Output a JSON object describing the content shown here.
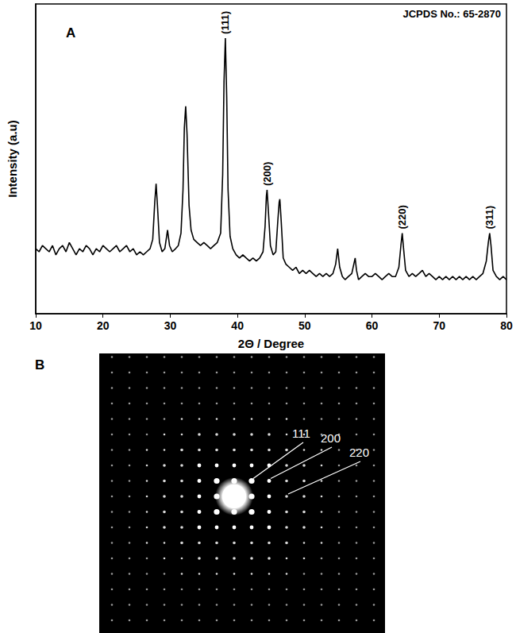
{
  "chart_data": {
    "type": "line",
    "title": "A",
    "subtitle": "JCPDS No.: 65-2870",
    "x_label": "2Θ / Degree",
    "y_label": "Intensity (a.u)",
    "color": "#000000",
    "grid": false,
    "tick_labels": "x",
    "xlim": [
      10,
      80
    ],
    "xticks": [
      10,
      20,
      30,
      40,
      50,
      60,
      70,
      80
    ],
    "ylim": [
      0,
      100
    ],
    "annotations": [
      {
        "text": "(111)",
        "x": 38.2
      },
      {
        "text": "(200)",
        "x": 44.4
      },
      {
        "text": "(220)",
        "x": 64.5
      },
      {
        "text": "(311)",
        "x": 77.5
      }
    ],
    "x": [
      10,
      10.5,
      11,
      11.5,
      12,
      12.5,
      13,
      13.5,
      14,
      14.5,
      15,
      15.5,
      16,
      16.5,
      17,
      17.5,
      18,
      18.5,
      19,
      19.5,
      20,
      20.5,
      21,
      21.5,
      22,
      22.5,
      23,
      23.5,
      24,
      24.5,
      25,
      25.5,
      26,
      26.5,
      27,
      27.4,
      27.7,
      27.9,
      28.1,
      28.4,
      28.8,
      29.2,
      29.6,
      29.9,
      30.3,
      30.8,
      31.2,
      31.6,
      31.9,
      32.1,
      32.3,
      32.5,
      32.8,
      33.1,
      33.5,
      34,
      34.5,
      35,
      35.5,
      36,
      36.5,
      37,
      37.5,
      37.8,
      38,
      38.2,
      38.4,
      38.6,
      38.9,
      39.3,
      39.8,
      40.3,
      40.8,
      41.3,
      41.8,
      42.3,
      42.8,
      43.3,
      43.8,
      44.1,
      44.3,
      44.4,
      44.6,
      44.9,
      45.3,
      45.7,
      46,
      46.2,
      46.3,
      46.5,
      46.8,
      47.2,
      47.7,
      48.2,
      48.7,
      49.2,
      49.7,
      50.2,
      50.7,
      51.2,
      51.7,
      52.2,
      52.7,
      53.2,
      53.7,
      54.2,
      54.6,
      54.9,
      55.2,
      55.6,
      56,
      56.5,
      57,
      57.3,
      57.5,
      57.7,
      58,
      58.5,
      59,
      59.5,
      60,
      60.5,
      61,
      61.5,
      62,
      62.5,
      63,
      63.5,
      64,
      64.3,
      64.5,
      64.7,
      65,
      65.5,
      66,
      66.5,
      67,
      67.5,
      68,
      68.5,
      69,
      69.5,
      70,
      70.5,
      71,
      71.5,
      72,
      72.5,
      73,
      73.5,
      74,
      74.5,
      75,
      75.5,
      76,
      76.5,
      77,
      77.3,
      77.5,
      77.7,
      78,
      78.5,
      79,
      79.5,
      80
    ],
    "values": [
      21,
      20,
      22,
      21,
      20,
      22,
      19,
      21,
      22,
      20,
      23,
      21,
      19,
      21,
      20,
      22,
      21,
      19,
      21,
      20,
      22,
      21,
      20,
      21,
      22,
      20,
      21,
      22,
      20,
      21,
      19,
      20,
      19,
      20,
      21,
      24,
      36,
      42,
      35,
      23,
      20,
      21,
      27,
      22,
      20,
      21,
      22,
      26,
      40,
      60,
      67,
      58,
      35,
      27,
      24,
      23,
      22,
      23,
      22,
      21,
      22,
      23,
      26,
      45,
      75,
      89,
      70,
      40,
      25,
      21,
      19,
      18,
      19,
      18,
      17,
      18,
      17,
      18,
      20,
      28,
      38,
      40,
      33,
      22,
      19,
      20,
      30,
      36,
      37,
      30,
      18,
      16,
      15,
      14,
      15,
      13,
      14,
      13,
      14,
      13,
      12,
      13,
      12,
      13,
      12,
      13,
      16,
      21,
      15,
      12,
      11,
      12,
      13,
      16,
      18,
      14,
      11,
      12,
      13,
      12,
      12,
      13,
      12,
      11,
      12,
      13,
      12,
      12,
      15,
      22,
      26,
      21,
      14,
      12,
      13,
      12,
      13,
      14,
      12,
      13,
      12,
      11,
      12,
      11,
      12,
      11,
      12,
      11,
      12,
      11,
      12,
      11,
      12,
      11,
      12,
      13,
      17,
      23,
      26,
      22,
      14,
      12,
      11,
      12,
      11
    ]
  },
  "diffraction_pattern": {
    "label": "B",
    "spot_labels": [
      "111",
      "200",
      "220"
    ]
  }
}
